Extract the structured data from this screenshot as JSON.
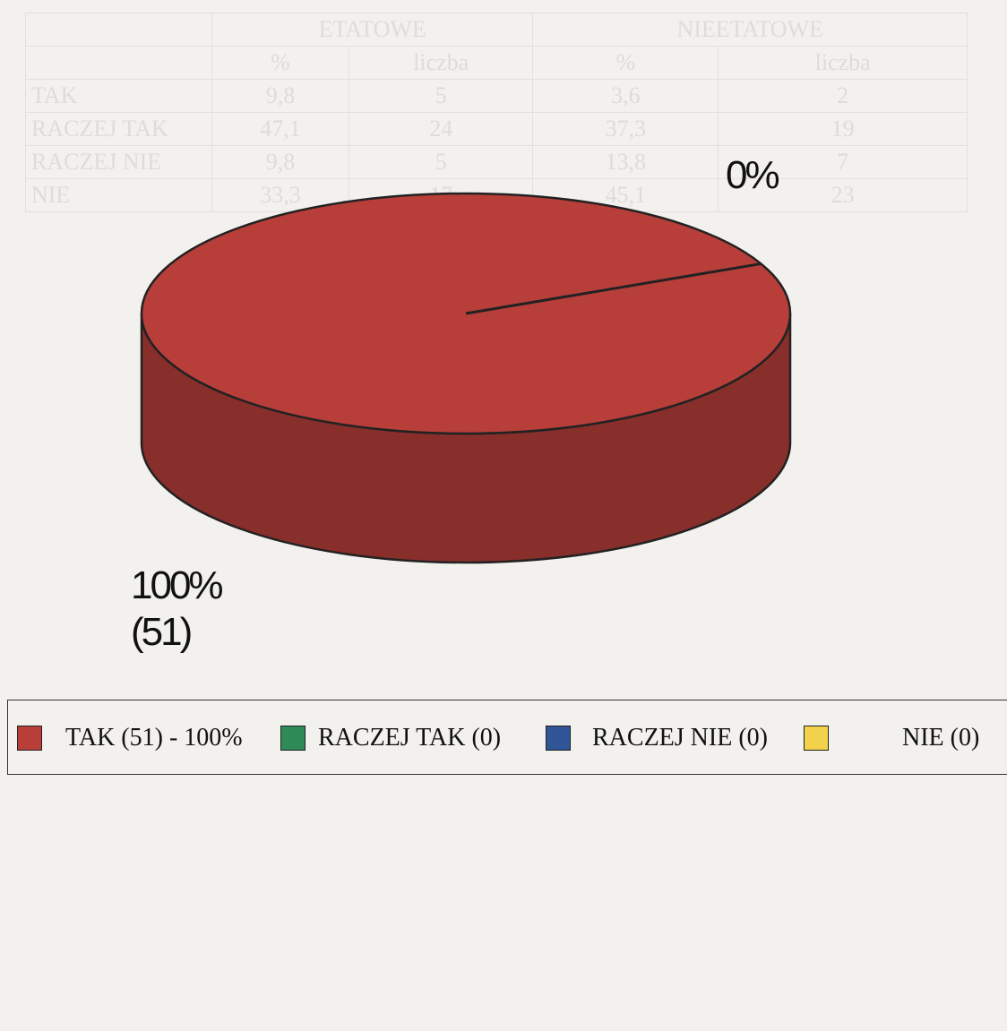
{
  "chart_data": {
    "type": "pie",
    "style": "3d",
    "categories": [
      "TAK",
      "RACZEJ TAK",
      "RACZEJ NIE",
      "NIE"
    ],
    "values": [
      51,
      0,
      0,
      0
    ],
    "percentages": [
      100,
      0,
      0,
      0
    ],
    "colors": [
      "#b83e3a",
      "#2e8b57",
      "#2f5597",
      "#f2d24b"
    ],
    "data_labels": {
      "full": [
        "100%",
        "(51)"
      ],
      "zero": "0%"
    },
    "legend": {
      "placement": "bottom",
      "entries": [
        "TAK (51) - 100%",
        "RACZEJ TAK (0)",
        "RACZEJ NIE (0)",
        "NIE (0)"
      ]
    },
    "title": "",
    "xlabel": "",
    "ylabel": ""
  }
}
